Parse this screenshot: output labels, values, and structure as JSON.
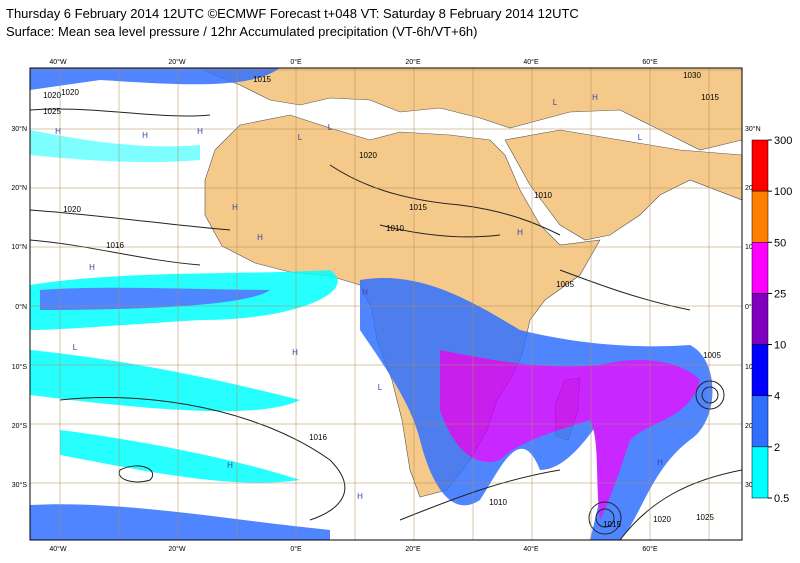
{
  "header": {
    "title": "Thursday 6 February 2014 12UTC ©ECMWF Forecast t+048 VT: Saturday 8 February 2014 12UTC",
    "subtitle": "Surface: Mean sea level pressure / 12hr Accumulated precipitation (VT-6h/VT+6h)"
  },
  "map": {
    "lon_labels": [
      "40°W",
      "20°W",
      "0°E",
      "20°E",
      "40°E",
      "60°E"
    ],
    "lat_labels": [
      "30°N",
      "20°N",
      "10°N",
      "0°N",
      "10°S",
      "20°S",
      "30°S"
    ],
    "isobar_labels": [
      "1015",
      "1020",
      "1025",
      "1020",
      "1016",
      "1020",
      "1015",
      "1010",
      "1010",
      "1005",
      "1005",
      "1010",
      "1015",
      "1020",
      "1025",
      "1030",
      "1020",
      "1016",
      "1015"
    ],
    "pressure_centers": [
      "H",
      "H",
      "H",
      "L",
      "H",
      "L",
      "H",
      "H",
      "L",
      "H",
      "H",
      "H",
      "H",
      "L",
      "H",
      "L",
      "H",
      "L",
      "H"
    ]
  },
  "legend": {
    "levels": [
      "300",
      "100",
      "50",
      "25",
      "10",
      "4",
      "2",
      "0.5"
    ],
    "colors": [
      "#ff0000",
      "#ff8000",
      "#ff00ff",
      "#8000c0",
      "#0000ff",
      "#3070ff",
      "#00ffff"
    ]
  }
}
